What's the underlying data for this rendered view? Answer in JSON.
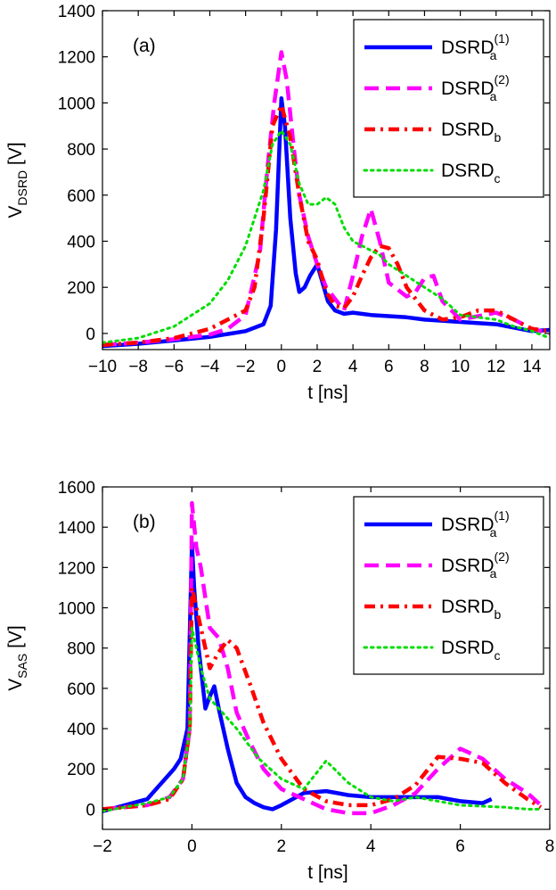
{
  "chart_data": [
    {
      "type": "line",
      "panel_label": "(a)",
      "xlabel": "t [ns]",
      "ylabel": {
        "base": "V",
        "sub": "DSRD",
        "unit": " [V]"
      },
      "xlim": [
        -10,
        15
      ],
      "ylim": [
        -70,
        1400
      ],
      "xticks": [
        -10,
        -8,
        -6,
        -4,
        -2,
        0,
        2,
        4,
        6,
        8,
        10,
        12,
        14
      ],
      "yticks": [
        0,
        200,
        400,
        600,
        800,
        1000,
        1200,
        1400
      ],
      "legend_position": "top-right",
      "grid": false,
      "series": [
        {
          "name": {
            "base": "DSRD",
            "sub": "a",
            "sup": "(1)"
          },
          "color": "#0000ff",
          "style": "solid",
          "x": [
            -10,
            -8,
            -6,
            -4,
            -2,
            -1,
            -0.6,
            -0.3,
            0,
            0.2,
            0.5,
            0.8,
            1,
            1.3,
            1.6,
            2,
            2.3,
            2.6,
            3,
            3.5,
            4,
            5,
            6,
            7,
            8,
            10,
            12,
            14,
            15
          ],
          "y": [
            -55,
            -45,
            -30,
            -15,
            10,
            40,
            120,
            450,
            1020,
            900,
            500,
            260,
            180,
            200,
            250,
            300,
            220,
            140,
            100,
            85,
            90,
            80,
            75,
            70,
            60,
            50,
            40,
            10,
            15
          ]
        },
        {
          "name": {
            "base": "DSRD",
            "sub": "a",
            "sup": "(2)"
          },
          "color": "#ff00ff",
          "style": "dashed",
          "x": [
            -10,
            -8,
            -6,
            -4,
            -3,
            -2,
            -1.2,
            -0.8,
            -0.4,
            0,
            0.3,
            0.7,
            1,
            1.5,
            2,
            2.5,
            3,
            3.5,
            4,
            4.5,
            5,
            5.5,
            6,
            7,
            7.5,
            8,
            8.5,
            9,
            10,
            11,
            12,
            13,
            14,
            15
          ],
          "y": [
            -50,
            -40,
            -25,
            -5,
            20,
            80,
            350,
            700,
            1000,
            1220,
            1100,
            800,
            600,
            420,
            300,
            200,
            150,
            100,
            250,
            420,
            540,
            400,
            220,
            160,
            180,
            240,
            250,
            140,
            60,
            75,
            90,
            60,
            20,
            0
          ]
        },
        {
          "name": {
            "base": "DSRD",
            "sub": "b"
          },
          "color": "#ff0000",
          "style": "dashdot",
          "x": [
            -10,
            -8,
            -6,
            -4,
            -2,
            -1.5,
            -1,
            -0.5,
            0,
            0.5,
            1,
            1.5,
            2,
            2.5,
            3,
            3.5,
            4,
            4.5,
            5,
            5.5,
            6,
            6.5,
            7,
            8,
            9,
            10,
            11,
            12,
            13,
            14,
            15
          ],
          "y": [
            -50,
            -40,
            -20,
            20,
            100,
            200,
            500,
            900,
            990,
            850,
            600,
            400,
            320,
            180,
            120,
            110,
            160,
            250,
            330,
            380,
            370,
            300,
            200,
            100,
            60,
            70,
            100,
            100,
            60,
            20,
            10
          ]
        },
        {
          "name": {
            "base": "DSRD",
            "sub": "c"
          },
          "color": "#00dd00",
          "style": "dotted",
          "x": [
            -10,
            -8,
            -6,
            -4,
            -3,
            -2,
            -1,
            -0.5,
            0,
            0.5,
            1,
            1.5,
            2,
            2.5,
            3,
            3.5,
            4,
            4.5,
            5,
            5.5,
            6,
            7,
            8,
            9,
            10,
            11,
            12,
            13,
            14,
            15
          ],
          "y": [
            -40,
            -20,
            30,
            130,
            230,
            380,
            620,
            820,
            880,
            820,
            650,
            560,
            560,
            590,
            560,
            460,
            400,
            380,
            360,
            340,
            300,
            250,
            200,
            150,
            80,
            70,
            60,
            30,
            10,
            -20
          ]
        }
      ]
    },
    {
      "type": "line",
      "panel_label": "(b)",
      "xlabel": "t [ns]",
      "ylabel": {
        "base": "V",
        "sub": "SAS",
        "unit": " [V]"
      },
      "xlim": [
        -2,
        8
      ],
      "ylim": [
        -100,
        1600
      ],
      "xticks": [
        -2,
        0,
        2,
        4,
        6,
        8
      ],
      "yticks": [
        0,
        200,
        400,
        600,
        800,
        1000,
        1200,
        1400,
        1600
      ],
      "legend_position": "top-right",
      "grid": false,
      "series": [
        {
          "name": {
            "base": "DSRD",
            "sub": "a",
            "sup": "(1)"
          },
          "color": "#0000ff",
          "style": "solid",
          "x": [
            -2,
            -1.5,
            -1,
            -0.6,
            -0.4,
            -0.25,
            -0.1,
            0,
            0.05,
            0.15,
            0.3,
            0.4,
            0.5,
            0.6,
            0.8,
            1,
            1.2,
            1.4,
            1.6,
            1.8,
            2,
            2.5,
            3,
            3.5,
            4,
            4.5,
            5,
            5.5,
            6,
            6.5,
            6.7
          ],
          "y": [
            -10,
            20,
            50,
            150,
            200,
            250,
            400,
            1320,
            1100,
            800,
            500,
            560,
            610,
            500,
            300,
            130,
            60,
            30,
            10,
            0,
            20,
            80,
            90,
            70,
            60,
            60,
            60,
            60,
            40,
            30,
            50
          ]
        },
        {
          "name": {
            "base": "DSRD",
            "sub": "a",
            "sup": "(2)"
          },
          "color": "#ff00ff",
          "style": "dashed",
          "x": [
            -2,
            -1,
            -0.5,
            -0.2,
            -0.05,
            0,
            0.1,
            0.2,
            0.4,
            0.6,
            0.8,
            1,
            1.3,
            1.6,
            2,
            2.5,
            3,
            3.5,
            4,
            4.5,
            5,
            5.5,
            6,
            6.5,
            7,
            7.5,
            7.8
          ],
          "y": [
            0,
            20,
            60,
            150,
            400,
            1520,
            1300,
            1200,
            900,
            850,
            700,
            480,
            330,
            200,
            100,
            50,
            0,
            -20,
            -20,
            20,
            80,
            200,
            300,
            250,
            150,
            80,
            20
          ]
        },
        {
          "name": {
            "base": "DSRD",
            "sub": "b"
          },
          "color": "#ff0000",
          "style": "dashdot",
          "x": [
            -2,
            -1,
            -0.5,
            -0.2,
            -0.05,
            0,
            0.2,
            0.4,
            0.6,
            0.8,
            1,
            1.3,
            1.6,
            2,
            2.5,
            3,
            3.5,
            4,
            4.5,
            5,
            5.5,
            6,
            6.5,
            7,
            7.5,
            7.8
          ],
          "y": [
            0,
            20,
            50,
            150,
            400,
            1100,
            900,
            700,
            780,
            840,
            800,
            620,
            430,
            250,
            100,
            40,
            20,
            20,
            50,
            120,
            260,
            250,
            230,
            130,
            50,
            10
          ]
        },
        {
          "name": {
            "base": "DSRD",
            "sub": "c"
          },
          "color": "#00dd00",
          "style": "dotted",
          "x": [
            -2,
            -1,
            -0.5,
            -0.2,
            -0.05,
            0,
            0.2,
            0.4,
            0.6,
            0.8,
            1,
            1.5,
            2,
            2.5,
            3,
            3.5,
            4,
            4.5,
            5,
            5.5,
            6,
            7,
            7.5,
            7.8
          ],
          "y": [
            -10,
            30,
            60,
            150,
            400,
            900,
            700,
            550,
            500,
            450,
            400,
            250,
            150,
            100,
            240,
            130,
            60,
            40,
            60,
            40,
            20,
            10,
            0,
            0
          ]
        }
      ]
    }
  ]
}
